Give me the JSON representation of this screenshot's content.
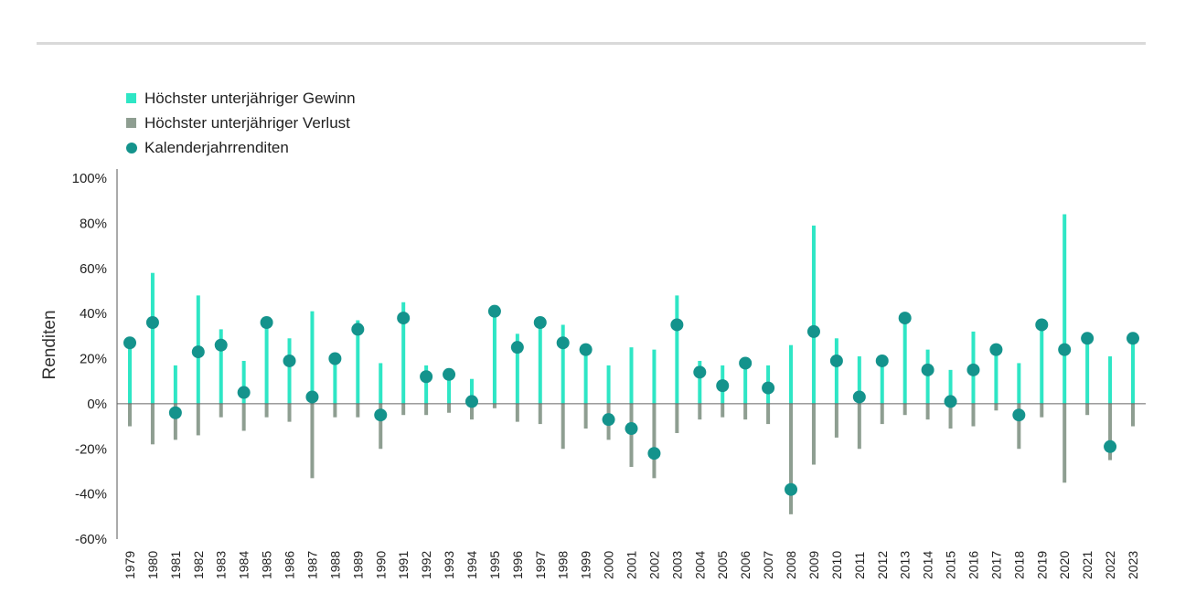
{
  "chart_data": {
    "type": "bar",
    "ylabel": "Renditen",
    "xlabel": "",
    "ylim": [
      -60,
      100
    ],
    "yticks": [
      100,
      80,
      60,
      40,
      20,
      0,
      -20,
      -40,
      -60
    ],
    "ytick_labels": [
      "100%",
      "80%",
      "60%",
      "40%",
      "20%",
      "0%",
      "-20%",
      "-40%",
      "-60%"
    ],
    "legend_position": "top-left",
    "categories": [
      "1979",
      "1980",
      "1981",
      "1982",
      "1983",
      "1984",
      "1985",
      "1986",
      "1987",
      "1988",
      "1989",
      "1990",
      "1991",
      "1992",
      "1993",
      "1994",
      "1995",
      "1996",
      "1997",
      "1998",
      "1999",
      "2000",
      "2001",
      "2002",
      "2003",
      "2004",
      "2005",
      "2006",
      "2007",
      "2008",
      "2009",
      "2010",
      "2011",
      "2012",
      "2013",
      "2014",
      "2015",
      "2016",
      "2017",
      "2018",
      "2019",
      "2020",
      "2021",
      "2022",
      "2023"
    ],
    "series": [
      {
        "name": "Höchster unterjähriger Gewinn",
        "color": "#2ee6c5",
        "values": [
          28,
          58,
          17,
          48,
          33,
          19,
          36,
          29,
          41,
          21,
          37,
          18,
          45,
          17,
          13,
          11,
          41,
          31,
          36,
          35,
          24,
          17,
          25,
          24,
          48,
          19,
          17,
          19,
          17,
          26,
          79,
          29,
          21,
          20,
          39,
          24,
          15,
          32,
          24,
          18,
          35,
          84,
          29,
          21,
          29
        ]
      },
      {
        "name": "Höchster unterjähriger Verlust",
        "color": "#8e9e91",
        "values": [
          -10,
          -18,
          -16,
          -14,
          -6,
          -12,
          -6,
          -8,
          -33,
          -6,
          -6,
          -20,
          -5,
          -5,
          -4,
          -7,
          -2,
          -8,
          -9,
          -20,
          -11,
          -16,
          -28,
          -33,
          -13,
          -7,
          -6,
          -7,
          -9,
          -49,
          -27,
          -15,
          -20,
          -9,
          -5,
          -7,
          -11,
          -10,
          -3,
          -20,
          -6,
          -35,
          -5,
          -25,
          -10
        ]
      },
      {
        "name": "Kalenderjahrrenditen",
        "color": "#14938c",
        "values": [
          27,
          36,
          -4,
          23,
          26,
          5,
          36,
          19,
          3,
          20,
          33,
          -5,
          38,
          12,
          13,
          1,
          41,
          25,
          36,
          27,
          24,
          -7,
          -11,
          -22,
          35,
          14,
          8,
          18,
          7,
          -38,
          32,
          19,
          3,
          19,
          38,
          15,
          1,
          15,
          24,
          -5,
          35,
          24,
          29,
          -19,
          29
        ]
      }
    ]
  }
}
